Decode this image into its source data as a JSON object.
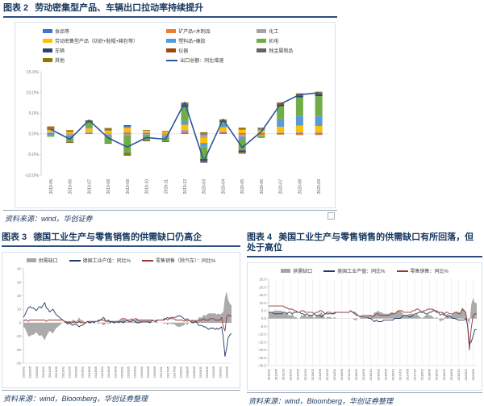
{
  "fig2": {
    "label": "图表 2",
    "title": "劳动密集型产品、车辆出口拉动率持续提升",
    "source": "资料来源：wind，华创证券"
  },
  "fig3": {
    "label": "图表 3",
    "title": "德国工业生产与零售销售的供需缺口仍高企",
    "source": "资料来源：wind，Bloomberg，华创证券整理"
  },
  "fig4": {
    "label": "图表 4",
    "title": "美国工业生产与零售销售的供需缺口有所回落，但处于高位",
    "source": "资料来源：wind，Bloomberg，华创证券整理"
  },
  "chart_data": [
    {
      "id": "fig2",
      "type": "bar",
      "stacked": true,
      "title": "劳动密集型产品、车辆出口拉动率持续提升",
      "ylim": [
        -10,
        15
      ],
      "ytick_step": 5,
      "ytick_format": "percent1",
      "categories": [
        "2019-05",
        "2019-06",
        "2019-07",
        "2019-08",
        "2019-09",
        "2019-10",
        "2019-11",
        "2019-12",
        "2020-03",
        "2020-04",
        "2020-05",
        "2020-06",
        "2020-07",
        "2020-08",
        "2020-09"
      ],
      "series": [
        {
          "name": "食品等",
          "color": "#4472C4",
          "values": [
            0.2,
            0.1,
            0.2,
            0.1,
            0.2,
            0.2,
            0.1,
            0.3,
            -0.2,
            0.3,
            0.2,
            0.2,
            0.2,
            0.2,
            0.2
          ]
        },
        {
          "name": "矿产品+木制品",
          "color": "#ED7D31",
          "values": [
            0.1,
            -0.1,
            0.1,
            -0.1,
            0.3,
            0.1,
            -0.2,
            0.3,
            -0.3,
            0.2,
            -0.3,
            -0.3,
            -0.2,
            -0.3,
            -0.3
          ]
        },
        {
          "name": "化工",
          "color": "#A5A5A5",
          "values": [
            0.2,
            -0.2,
            0.2,
            -0.2,
            -0.3,
            -0.2,
            -0.2,
            0.4,
            -0.5,
            0.1,
            -0.4,
            -0.2,
            0.2,
            0.3,
            0.3
          ]
        },
        {
          "name": "劳动密集型产品（纺织+鞋帽+箱包等）",
          "color": "#FFC000",
          "values": [
            0.5,
            0.4,
            0.8,
            0.7,
            0.9,
            0.5,
            0.4,
            1.2,
            -1.2,
            1.0,
            0.8,
            0.6,
            1.3,
            1.5,
            1.4
          ]
        },
        {
          "name": "塑料品+橡胶",
          "color": "#5B9BD5",
          "values": [
            -0.4,
            -0.8,
            0.3,
            -0.4,
            0.4,
            -0.3,
            -0.4,
            0.8,
            -0.9,
            0.7,
            -0.5,
            0.3,
            1.8,
            2.3,
            2.4
          ]
        },
        {
          "name": "机电",
          "color": "#70AD47",
          "values": [
            -0.3,
            -0.9,
            1.2,
            -1.5,
            -4.2,
            -1.1,
            -1.0,
            3.5,
            -3.0,
            0.6,
            -2.8,
            -0.5,
            3.2,
            4.5,
            4.8
          ]
        },
        {
          "name": "车辆",
          "color": "#264478",
          "values": [
            0.2,
            0.1,
            0.2,
            0.1,
            0.2,
            0.1,
            0.1,
            0.3,
            -0.4,
            0.2,
            -0.4,
            0.1,
            0.3,
            0.4,
            0.5
          ]
        },
        {
          "name": "仪器",
          "color": "#9E480E",
          "values": [
            0.1,
            -0.1,
            0.1,
            -0.1,
            0.1,
            -0.1,
            -0.1,
            0.2,
            -0.2,
            0.1,
            -0.2,
            0.1,
            0.2,
            0.2,
            0.2
          ]
        },
        {
          "name": "贱金属制品",
          "color": "#636363",
          "values": [
            0.1,
            -0.1,
            0.1,
            -0.1,
            -0.2,
            -0.1,
            -0.1,
            0.2,
            -0.3,
            0.1,
            -0.2,
            0.1,
            0.2,
            0.2,
            0.2
          ]
        },
        {
          "name": "其他",
          "color": "#997300",
          "values": [
            0.4,
            0.3,
            0.1,
            0.5,
            -0.6,
            0.0,
            0.1,
            0.4,
            0.4,
            0.2,
            0.5,
            0.1,
            0.2,
            0.2,
            0.2
          ]
        }
      ],
      "line_series": {
        "name": "出口总额：同比增速",
        "color": "#2E5496",
        "values": [
          1.1,
          -1.3,
          3.3,
          -1.0,
          -3.2,
          -0.9,
          -1.3,
          7.6,
          -6.6,
          3.5,
          -3.3,
          0.5,
          7.2,
          9.5,
          9.9
        ]
      }
    },
    {
      "id": "fig3",
      "type": "area",
      "title": "德国工业生产与零售销售的供需缺口仍高企",
      "ylim": [
        -30,
        40
      ],
      "ystep": 10,
      "yfmt": "int",
      "vgrid": false,
      "x_label_every": 4,
      "x_labels": [
        "2010/01",
        "2010/05",
        "2010/09",
        "2011/01",
        "2011/05",
        "2011/09",
        "2012/01",
        "2012/05",
        "2012/09",
        "2013/01",
        "2013/05",
        "2013/09",
        "2014/01",
        "2014/05",
        "2014/09",
        "2015/01",
        "2015/05",
        "2015/09",
        "2016/01",
        "2016/05",
        "2016/09",
        "2017/01",
        "2017/05",
        "2017/09",
        "2018/01",
        "2018/05",
        "2018/09",
        "2019/01",
        "2019/05",
        "2019/09",
        "2020/01",
        "2020/05"
      ],
      "area": {
        "name": "供需缺口",
        "color": "#A6A6A6",
        "values": [
          -3,
          -4,
          -7,
          -10,
          -10,
          -9,
          -9,
          -8,
          -7,
          -9,
          -10,
          -9,
          -11,
          -13,
          -10,
          -8,
          -6,
          -7,
          -8,
          -6,
          -4,
          -3,
          -2,
          -1,
          0,
          0,
          1,
          1,
          1,
          1,
          2,
          2,
          1,
          2,
          4,
          2,
          2,
          1,
          0,
          0,
          1,
          1,
          0,
          1,
          0,
          0,
          -1,
          0,
          -1,
          -2,
          -1,
          0,
          -1,
          1,
          0,
          1,
          1,
          0,
          1,
          1,
          2,
          3,
          2,
          0,
          1,
          1,
          2,
          0,
          2,
          3,
          2,
          2,
          1,
          1,
          1,
          1,
          1,
          2,
          1,
          0,
          0,
          1,
          0,
          0,
          0,
          0,
          -1,
          0,
          -2,
          0,
          -1,
          -1,
          -1,
          -2,
          -3,
          -3,
          -3,
          -2,
          -2,
          0,
          -2,
          0,
          0,
          2,
          1,
          1,
          1,
          4,
          4,
          4,
          6,
          5,
          6,
          7,
          7,
          7,
          7,
          7,
          6,
          7,
          6,
          7,
          8,
          19,
          23,
          17,
          14,
          13
        ]
      },
      "lines": [
        {
          "name": "德国工业产值：同比%",
          "color": "#1F3864",
          "values": [
            4,
            6,
            9,
            11,
            12,
            11,
            11,
            10,
            9,
            11,
            12,
            11,
            13,
            15,
            11,
            10,
            8,
            9,
            10,
            8,
            6,
            5,
            4,
            3,
            2,
            1,
            0,
            -1,
            0,
            -1,
            -2,
            -1,
            -1,
            -2,
            -3,
            -2,
            -2,
            -1,
            0,
            1,
            0,
            0,
            1,
            0,
            1,
            1,
            2,
            2,
            3,
            4,
            2,
            1,
            2,
            0,
            1,
            0,
            0,
            1,
            0,
            1,
            1,
            0,
            1,
            2,
            1,
            1,
            1,
            2,
            1,
            0,
            0,
            0,
            1,
            1,
            1,
            1,
            1,
            0,
            1,
            2,
            1,
            1,
            2,
            2,
            2,
            2,
            3,
            3,
            4,
            3,
            4,
            4,
            4,
            4,
            5,
            5,
            5,
            4,
            3,
            2,
            3,
            2,
            1,
            0,
            0,
            1,
            0,
            -2,
            -2,
            -2,
            -3,
            -3,
            -4,
            -5,
            -4,
            -4,
            -4,
            -5,
            -4,
            -5,
            -4,
            -3,
            -11,
            -25,
            -19,
            -11,
            -9,
            -8
          ]
        },
        {
          "name": "零售销售（除汽车）：同比%",
          "color": "#953735",
          "values": [
            1,
            2,
            2,
            1,
            2,
            2,
            2,
            2,
            2,
            2,
            2,
            2,
            2,
            2,
            1,
            2,
            2,
            2,
            2,
            2,
            2,
            2,
            2,
            2,
            2,
            1,
            1,
            0,
            1,
            0,
            0,
            1,
            0,
            0,
            1,
            0,
            0,
            0,
            0,
            1,
            1,
            1,
            1,
            1,
            1,
            1,
            1,
            2,
            2,
            2,
            1,
            1,
            1,
            1,
            1,
            1,
            1,
            1,
            1,
            2,
            3,
            3,
            3,
            2,
            2,
            2,
            3,
            2,
            3,
            3,
            2,
            2,
            2,
            2,
            2,
            2,
            2,
            2,
            2,
            2,
            1,
            2,
            2,
            2,
            2,
            2,
            2,
            3,
            2,
            3,
            3,
            3,
            3,
            2,
            2,
            2,
            2,
            2,
            1,
            2,
            1,
            2,
            1,
            2,
            1,
            2,
            1,
            2,
            2,
            2,
            3,
            2,
            2,
            2,
            3,
            3,
            3,
            2,
            2,
            2,
            2,
            4,
            -3,
            -6,
            4,
            6,
            5,
            5
          ]
        }
      ]
    },
    {
      "id": "fig4",
      "type": "area",
      "title": "美国工业生产与零售销售的供需缺口有所回落，但处于高位",
      "ylim": [
        -30,
        25
      ],
      "ystep": 5,
      "yfmt": "dec1",
      "vgrid": true,
      "x_label_every": 4,
      "x_labels": [
        "2011/02",
        "2011/06",
        "2011/10",
        "2012/02",
        "2012/06",
        "2012/10",
        "2013/02",
        "2013/06",
        "2013/10",
        "2014/02",
        "2014/06",
        "2014/10",
        "2015/02",
        "2015/06",
        "2015/10",
        "2016/02",
        "2016/06",
        "2016/10",
        "2017/02",
        "2017/06",
        "2017/10",
        "2018/02",
        "2018/06",
        "2018/10",
        "2019/02",
        "2019/06",
        "2019/10",
        "2020/02",
        "2020/06"
      ],
      "area": {
        "name": "供需缺口",
        "color": "#A6A6A6",
        "values": [
          4,
          4,
          4,
          5,
          5,
          5,
          5,
          5,
          4,
          3,
          4,
          2,
          2,
          3,
          1,
          1,
          0,
          0,
          2,
          2,
          2,
          1,
          2,
          2,
          2,
          0,
          2,
          2,
          3,
          4,
          2,
          0,
          1,
          1,
          1,
          0,
          1,
          0,
          0,
          0,
          0,
          0,
          0,
          0,
          0,
          0,
          0,
          -1,
          -1,
          0,
          0,
          1,
          1,
          1,
          1,
          2,
          2,
          2,
          4,
          4,
          5,
          4,
          4,
          3,
          3,
          3,
          3,
          4,
          4,
          3,
          4,
          5,
          5,
          4,
          2,
          2,
          2,
          3,
          3,
          3,
          2,
          3,
          2,
          1,
          0,
          1,
          2,
          3,
          2,
          2,
          1,
          0,
          1,
          0,
          -2,
          -1,
          -1,
          2,
          3,
          1,
          2,
          3,
          4,
          4.5,
          4,
          4,
          7,
          6,
          4,
          -1,
          -4,
          9,
          13,
          10,
          10
        ]
      },
      "lines": [
        {
          "name": "美国工业产值：同比%",
          "color": "#1F3864",
          "values": [
            4,
            4,
            4,
            3,
            3,
            3,
            3,
            3,
            4,
            4,
            3,
            4,
            4,
            3,
            4,
            4,
            4,
            4,
            3,
            3,
            2,
            3,
            2,
            2,
            2,
            3,
            2,
            2,
            2,
            1,
            2,
            3,
            3,
            3,
            3,
            3,
            3,
            4,
            4,
            4,
            4,
            4,
            4,
            4,
            4,
            5,
            4,
            4,
            3,
            2,
            1,
            1,
            1,
            1,
            1,
            0,
            0,
            -1,
            -2,
            -1,
            -2,
            -2,
            -2,
            -1,
            -1,
            -1,
            -1,
            -1,
            -1,
            0,
            0,
            0,
            0,
            1,
            2,
            2,
            2,
            1,
            1,
            2,
            3,
            3,
            4,
            4,
            4,
            4,
            3,
            3,
            4,
            4,
            5,
            5,
            4,
            4,
            4,
            4,
            3,
            2,
            1,
            2,
            1,
            0,
            0,
            -0.5,
            -1,
            -1,
            -1,
            -1,
            0,
            -4,
            -16,
            -15,
            -11,
            -7,
            -7
          ]
        },
        {
          "name": "零售销售：同比%",
          "color": "#953735",
          "values": [
            8,
            8,
            8,
            8,
            8,
            8,
            8,
            8,
            8,
            7,
            7,
            6,
            6,
            6,
            5,
            5,
            4,
            4,
            5,
            5,
            4,
            4,
            4,
            4,
            4,
            3,
            4,
            4,
            5,
            5,
            4,
            3,
            4,
            4,
            4,
            3,
            4,
            4,
            4,
            4,
            4,
            4,
            4,
            4,
            4,
            5,
            4,
            3,
            2,
            2,
            1,
            2,
            2,
            2,
            2,
            2,
            2,
            1,
            2,
            3,
            3,
            2,
            2,
            2,
            2,
            2,
            2,
            3,
            3,
            3,
            4,
            5,
            5,
            5,
            4,
            4,
            4,
            4,
            4,
            5,
            5,
            6,
            6,
            5,
            4,
            5,
            5,
            6,
            6,
            6,
            6,
            5,
            5,
            4,
            2,
            3,
            2,
            4,
            4,
            3,
            3,
            3,
            4,
            4,
            3,
            3,
            6,
            5,
            4,
            -5,
            -20,
            -6,
            2,
            3,
            3
          ]
        }
      ]
    }
  ]
}
